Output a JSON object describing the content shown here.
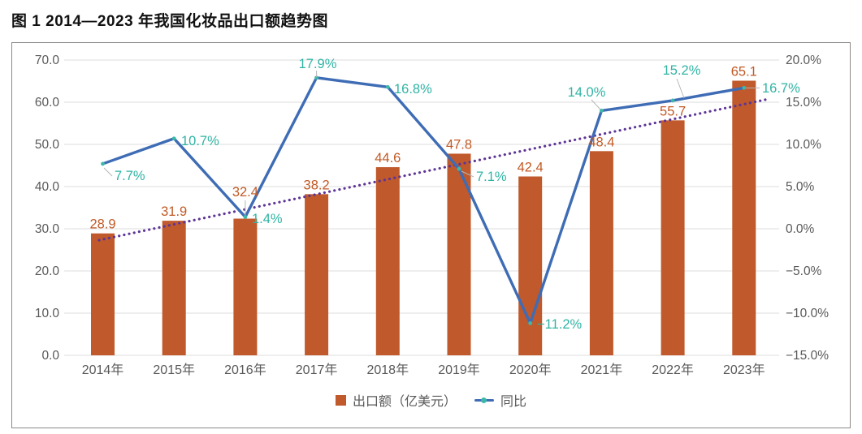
{
  "title": "图 1 2014—2023 年我国化妆品出口额趋势图",
  "chart_data": {
    "type": "bar",
    "subtype": "bar-line-combo",
    "categories": [
      "2014年",
      "2015年",
      "2016年",
      "2017年",
      "2018年",
      "2019年",
      "2020年",
      "2021年",
      "2022年",
      "2023年"
    ],
    "series": [
      {
        "name": "出口额（亿美元）",
        "type": "bar",
        "axis": "left",
        "values": [
          28.9,
          31.9,
          32.4,
          38.2,
          44.6,
          47.8,
          42.4,
          48.4,
          55.7,
          65.1
        ],
        "labels": [
          "28.9",
          "31.9",
          "32.4",
          "38.2",
          "44.6",
          "47.8",
          "42.4",
          "48.4",
          "55.7",
          "65.1"
        ],
        "color": "#c0592b"
      },
      {
        "name": "同比",
        "type": "line",
        "axis": "right",
        "values": [
          7.7,
          10.7,
          1.4,
          17.9,
          16.8,
          7.1,
          -11.2,
          14.0,
          15.2,
          16.7
        ],
        "labels": [
          "7.7%",
          "10.7%",
          "1.4%",
          "17.9%",
          "16.8%",
          "7.1%",
          "−11.2%",
          "14.0%",
          "15.2%",
          "16.7%"
        ],
        "color": "#3e6cb5"
      }
    ],
    "trendline": {
      "applies_to": "出口额（亿美元）",
      "style": "dotted",
      "color": "#5d3596",
      "start_value": 27.3,
      "end_value": 60.6
    },
    "left_axis": {
      "min": 0,
      "max": 70,
      "step": 10,
      "ticks": [
        "70.0",
        "60.0",
        "50.0",
        "40.0",
        "30.0",
        "20.0",
        "10.0",
        "0.0"
      ]
    },
    "right_axis": {
      "min": -15,
      "max": 20,
      "step": 5,
      "ticks": [
        "20.0%",
        "15.0%",
        "10.0%",
        "5.0%",
        "0.0%",
        "−5.0%",
        "−10.0%",
        "−15.0%"
      ]
    },
    "grid": "horizontal",
    "legend_position": "bottom",
    "legend": [
      {
        "label": "出口额（亿美元）",
        "swatch": "square",
        "color": "#c0592b"
      },
      {
        "label": "同比",
        "swatch": "line",
        "color": "#3e6cb5"
      }
    ],
    "colors": {
      "grid": "#dedede",
      "axis_text": "#595959",
      "bar_label": "#c25a26",
      "line_label": "#2fb4a4",
      "marker": "#3cb8a9",
      "leader": "#b5b5b5"
    }
  }
}
